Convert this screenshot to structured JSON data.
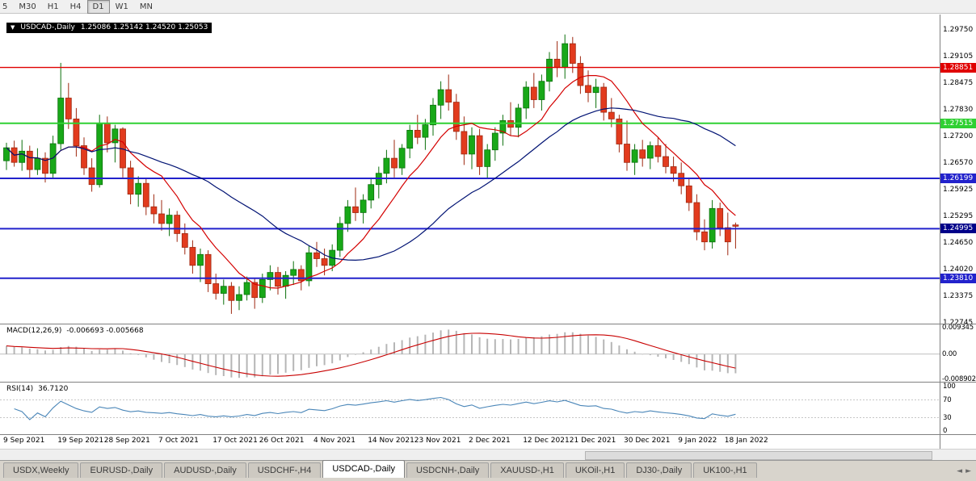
{
  "toolbar": {
    "buttons": [
      {
        "label": "5",
        "active": false
      },
      {
        "label": "M30",
        "active": false
      },
      {
        "label": "H1",
        "active": false
      },
      {
        "label": "H4",
        "active": false
      },
      {
        "label": "D1",
        "active": true
      },
      {
        "label": "W1",
        "active": false
      },
      {
        "label": "MN",
        "active": false
      }
    ]
  },
  "chart": {
    "dropdown_icon": "▼",
    "title": "USDCAD-,Daily",
    "ohlc": "1.25086 1.25142 1.24520 1.25053"
  },
  "colors": {
    "candle_up": "#18a818",
    "candle_up_border": "#0b700b",
    "candle_down": "#e23b1e",
    "candle_down_border": "#9e2810",
    "ma_fast": "#d40000",
    "ma_slow": "#001273",
    "macd_histogram": "#b6b6b6",
    "macd_signal": "#c80000",
    "rsi_line": "#4a86b8"
  },
  "chart_data": {
    "type": "candlestick",
    "symbol": "USDCAD",
    "timeframe": "Daily",
    "scale": {
      "price_top": 1.2975,
      "price_bottom": 1.22745
    },
    "y_ticks": [
      "1.29750",
      "1.29105",
      "1.28475",
      "1.27830",
      "1.27200",
      "1.26570",
      "1.25925",
      "1.25295",
      "1.24650",
      "1.24020",
      "1.23375",
      "1.22745"
    ],
    "x_labels": [
      {
        "index": 0,
        "label": "9 Sep 2021"
      },
      {
        "index": 7,
        "label": "19 Sep 2021"
      },
      {
        "index": 13,
        "label": "28 Sep 2021"
      },
      {
        "index": 20,
        "label": "7 Oct 2021"
      },
      {
        "index": 27,
        "label": "17 Oct 2021"
      },
      {
        "index": 33,
        "label": "26 Oct 2021"
      },
      {
        "index": 40,
        "label": "4 Nov 2021"
      },
      {
        "index": 47,
        "label": "14 Nov 2021"
      },
      {
        "index": 53,
        "label": "23 Nov 2021"
      },
      {
        "index": 60,
        "label": "2 Dec 2021"
      },
      {
        "index": 67,
        "label": "12 Dec 2021"
      },
      {
        "index": 73,
        "label": "21 Dec 2021"
      },
      {
        "index": 80,
        "label": "30 Dec 2021"
      },
      {
        "index": 87,
        "label": "9 Jan 2022"
      },
      {
        "index": 93,
        "label": "18 Jan 2022"
      }
    ],
    "hlines": [
      {
        "price": 1.28851,
        "label": "1.28851",
        "color": "#e00000",
        "tag": "#e00000",
        "width": 1.4
      },
      {
        "price": 1.27515,
        "label": "1.27515",
        "color": "#2fd032",
        "tag": "#2fd032",
        "width": 2
      },
      {
        "price": 1.26199,
        "label": "1.26199",
        "color": "#2222cc",
        "tag": "#2222cc",
        "width": 2
      },
      {
        "price": 1.24995,
        "label": "1.24995",
        "color": "#2222cc",
        "tag": "#000089",
        "width": 2
      },
      {
        "price": 1.2381,
        "label": "1.23810",
        "color": "#2222cc",
        "tag": "#2222cc",
        "width": 2
      }
    ],
    "candles": [
      [
        1.2662,
        1.2705,
        1.264,
        1.2693
      ],
      [
        1.2693,
        1.271,
        1.2648,
        1.2658
      ],
      [
        1.2658,
        1.2712,
        1.2638,
        1.2685
      ],
      [
        1.2685,
        1.2698,
        1.2618,
        1.2641
      ],
      [
        1.2641,
        1.2692,
        1.2628,
        1.2668
      ],
      [
        1.2668,
        1.2682,
        1.261,
        1.2632
      ],
      [
        1.2632,
        1.2722,
        1.2622,
        1.2703
      ],
      [
        1.2703,
        1.2896,
        1.2688,
        1.2812
      ],
      [
        1.2812,
        1.2848,
        1.2738,
        1.2762
      ],
      [
        1.2762,
        1.2788,
        1.2672,
        1.2698
      ],
      [
        1.2698,
        1.2718,
        1.2628,
        1.2645
      ],
      [
        1.2645,
        1.2668,
        1.2588,
        1.2605
      ],
      [
        1.2605,
        1.2772,
        1.2598,
        1.2752
      ],
      [
        1.2752,
        1.2768,
        1.2682,
        1.2705
      ],
      [
        1.2705,
        1.2748,
        1.2658,
        1.2738
      ],
      [
        1.2738,
        1.2742,
        1.2622,
        1.2645
      ],
      [
        1.2645,
        1.2662,
        1.2558,
        1.2582
      ],
      [
        1.2582,
        1.2625,
        1.2552,
        1.2608
      ],
      [
        1.2608,
        1.2618,
        1.2532,
        1.2552
      ],
      [
        1.2552,
        1.2582,
        1.2512,
        1.2535
      ],
      [
        1.2535,
        1.2568,
        1.2495,
        1.2512
      ],
      [
        1.2512,
        1.2548,
        1.2482,
        1.2532
      ],
      [
        1.2532,
        1.2542,
        1.2468,
        1.2488
      ],
      [
        1.2488,
        1.2512,
        1.2438,
        1.2455
      ],
      [
        1.2455,
        1.2472,
        1.2392,
        1.2412
      ],
      [
        1.2412,
        1.2452,
        1.2372,
        1.2438
      ],
      [
        1.2438,
        1.2448,
        1.2348,
        1.2368
      ],
      [
        1.2368,
        1.2392,
        1.233,
        1.2345
      ],
      [
        1.2345,
        1.2378,
        1.2318,
        1.2362
      ],
      [
        1.2362,
        1.2372,
        1.2296,
        1.2328
      ],
      [
        1.2328,
        1.2362,
        1.2305,
        1.2342
      ],
      [
        1.2342,
        1.2385,
        1.2328,
        1.2371
      ],
      [
        1.2371,
        1.2382,
        1.2308,
        1.2335
      ],
      [
        1.2335,
        1.2392,
        1.2322,
        1.2378
      ],
      [
        1.2378,
        1.2412,
        1.2352,
        1.2395
      ],
      [
        1.2395,
        1.2408,
        1.2342,
        1.2362
      ],
      [
        1.2362,
        1.2398,
        1.2332,
        1.2388
      ],
      [
        1.2388,
        1.2422,
        1.2365,
        1.2402
      ],
      [
        1.2402,
        1.2412,
        1.2352,
        1.2375
      ],
      [
        1.2375,
        1.2458,
        1.2362,
        1.2442
      ],
      [
        1.2442,
        1.2468,
        1.2408,
        1.2428
      ],
      [
        1.2428,
        1.2452,
        1.2388,
        1.2412
      ],
      [
        1.2412,
        1.2462,
        1.2398,
        1.2448
      ],
      [
        1.2448,
        1.2528,
        1.2432,
        1.2512
      ],
      [
        1.2512,
        1.2568,
        1.2492,
        1.2552
      ],
      [
        1.2552,
        1.2598,
        1.2518,
        1.2538
      ],
      [
        1.2538,
        1.2582,
        1.2512,
        1.2568
      ],
      [
        1.2568,
        1.2622,
        1.2548,
        1.2605
      ],
      [
        1.2605,
        1.2648,
        1.2572,
        1.2632
      ],
      [
        1.2632,
        1.2688,
        1.2608,
        1.2668
      ],
      [
        1.2668,
        1.2712,
        1.2622,
        1.2645
      ],
      [
        1.2645,
        1.2702,
        1.2628,
        1.2692
      ],
      [
        1.2692,
        1.2748,
        1.2668,
        1.2735
      ],
      [
        1.2735,
        1.2772,
        1.2702,
        1.2718
      ],
      [
        1.2718,
        1.2762,
        1.2688,
        1.2748
      ],
      [
        1.2748,
        1.2812,
        1.2722,
        1.2795
      ],
      [
        1.2795,
        1.2852,
        1.2762,
        1.2832
      ],
      [
        1.2832,
        1.2868,
        1.2782,
        1.2802
      ],
      [
        1.2802,
        1.2822,
        1.2712,
        1.2732
      ],
      [
        1.2732,
        1.2768,
        1.2652,
        1.2678
      ],
      [
        1.2678,
        1.2742,
        1.2642,
        1.2722
      ],
      [
        1.2722,
        1.2738,
        1.2628,
        1.2648
      ],
      [
        1.2648,
        1.2702,
        1.2618,
        1.2688
      ],
      [
        1.2688,
        1.2742,
        1.2662,
        1.2728
      ],
      [
        1.2728,
        1.2772,
        1.2698,
        1.2758
      ],
      [
        1.2758,
        1.2802,
        1.2722,
        1.2742
      ],
      [
        1.2742,
        1.2798,
        1.2718,
        1.2788
      ],
      [
        1.2788,
        1.2852,
        1.2762,
        1.2838
      ],
      [
        1.2838,
        1.2872,
        1.2788,
        1.2808
      ],
      [
        1.2808,
        1.2868,
        1.2782,
        1.2852
      ],
      [
        1.2852,
        1.2922,
        1.2828,
        1.2905
      ],
      [
        1.2905,
        1.2948,
        1.2862,
        1.2885
      ],
      [
        1.2885,
        1.2964,
        1.2858,
        1.2942
      ],
      [
        1.2942,
        1.2958,
        1.2872,
        1.2895
      ],
      [
        1.2895,
        1.2912,
        1.2822,
        1.2842
      ],
      [
        1.2842,
        1.2878,
        1.2802,
        1.2825
      ],
      [
        1.2825,
        1.2858,
        1.2788,
        1.2838
      ],
      [
        1.2838,
        1.2848,
        1.2758,
        1.2778
      ],
      [
        1.2778,
        1.2812,
        1.2742,
        1.2762
      ],
      [
        1.2762,
        1.2772,
        1.2682,
        1.2702
      ],
      [
        1.2702,
        1.2758,
        1.2638,
        1.2658
      ],
      [
        1.2658,
        1.2702,
        1.2628,
        1.2688
      ],
      [
        1.2688,
        1.2712,
        1.2648,
        1.2668
      ],
      [
        1.2668,
        1.2708,
        1.2642,
        1.2698
      ],
      [
        1.2698,
        1.2718,
        1.2658,
        1.2672
      ],
      [
        1.2672,
        1.2702,
        1.2632,
        1.2648
      ],
      [
        1.2648,
        1.2672,
        1.2612,
        1.2632
      ],
      [
        1.2632,
        1.2658,
        1.2582,
        1.2602
      ],
      [
        1.2602,
        1.2622,
        1.2542,
        1.2562
      ],
      [
        1.2562,
        1.2582,
        1.2472,
        1.2492
      ],
      [
        1.2492,
        1.2522,
        1.2448,
        1.2468
      ],
      [
        1.2468,
        1.2568,
        1.2452,
        1.2548
      ],
      [
        1.2548,
        1.2562,
        1.2482,
        1.2502
      ],
      [
        1.2502,
        1.2538,
        1.2436,
        1.2468
      ],
      [
        1.25086,
        1.25142,
        1.2452,
        1.25053
      ]
    ],
    "overlays": {
      "sma_fast_period": 9,
      "sma_slow_period": 27
    },
    "indicators": {
      "macd": {
        "label": "MACD(12,26,9)",
        "values_text": "-0.006693 -0.005668",
        "params": [
          12,
          26,
          9
        ],
        "axis": [
          "0.009345",
          "0.00",
          "-0.008902"
        ]
      },
      "rsi": {
        "label": "RSI(14)",
        "value_text": "36.7120",
        "period": 14,
        "levels": [
          70,
          30
        ],
        "axis": [
          "100",
          "70",
          "30",
          "0"
        ]
      }
    }
  },
  "tabs": [
    {
      "label": "USDX,Weekly",
      "active": false
    },
    {
      "label": "EURUSD-,Daily",
      "active": false
    },
    {
      "label": "AUDUSD-,Daily",
      "active": false
    },
    {
      "label": "USDCHF-,H4",
      "active": false
    },
    {
      "label": "USDCAD-,Daily",
      "active": true
    },
    {
      "label": "USDCNH-,Daily",
      "active": false
    },
    {
      "label": "XAUUSD-,H1",
      "active": false
    },
    {
      "label": "UKOil-,H1",
      "active": false
    },
    {
      "label": "DJ30-,Daily",
      "active": false
    },
    {
      "label": "UK100-,H1",
      "active": false
    }
  ],
  "tabbar": {
    "left_arrow": "◄",
    "right_arrow": "►"
  }
}
